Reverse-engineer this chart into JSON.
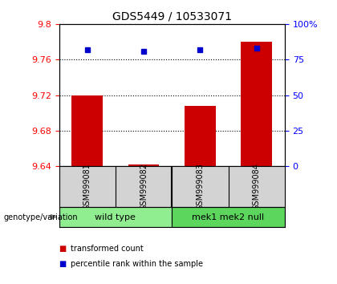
{
  "title": "GDS5449 / 10533071",
  "samples": [
    "GSM999081",
    "GSM999082",
    "GSM999083",
    "GSM999084"
  ],
  "transformed_counts": [
    9.72,
    9.642,
    9.708,
    9.78
  ],
  "percentile_ranks": [
    82,
    81,
    82,
    83
  ],
  "groups": [
    {
      "label": "wild type",
      "samples": [
        0,
        1
      ],
      "color": "#90ee90"
    },
    {
      "label": "mek1 mek2 null",
      "samples": [
        2,
        3
      ],
      "color": "#5cd65c"
    }
  ],
  "ylim_left": [
    9.64,
    9.8
  ],
  "ylim_right": [
    0,
    100
  ],
  "yticks_left": [
    9.64,
    9.68,
    9.72,
    9.76,
    9.8
  ],
  "ytick_labels_left": [
    "9.64",
    "9.68",
    "9.72",
    "9.76",
    "9.8"
  ],
  "yticks_right": [
    0,
    25,
    50,
    75,
    100
  ],
  "ytick_labels_right": [
    "0",
    "25",
    "50",
    "75",
    "100%"
  ],
  "grid_lines": [
    9.76,
    9.72,
    9.68
  ],
  "bar_color": "#cc0000",
  "dot_color": "#0000cc",
  "bar_width": 0.55,
  "sample_label_bg": "#d3d3d3",
  "group_colors": [
    "#90ee90",
    "#5cd65c"
  ],
  "legend_items": [
    {
      "color": "#cc0000",
      "label": "transformed count"
    },
    {
      "color": "#0000cc",
      "label": "percentile rank within the sample"
    }
  ]
}
